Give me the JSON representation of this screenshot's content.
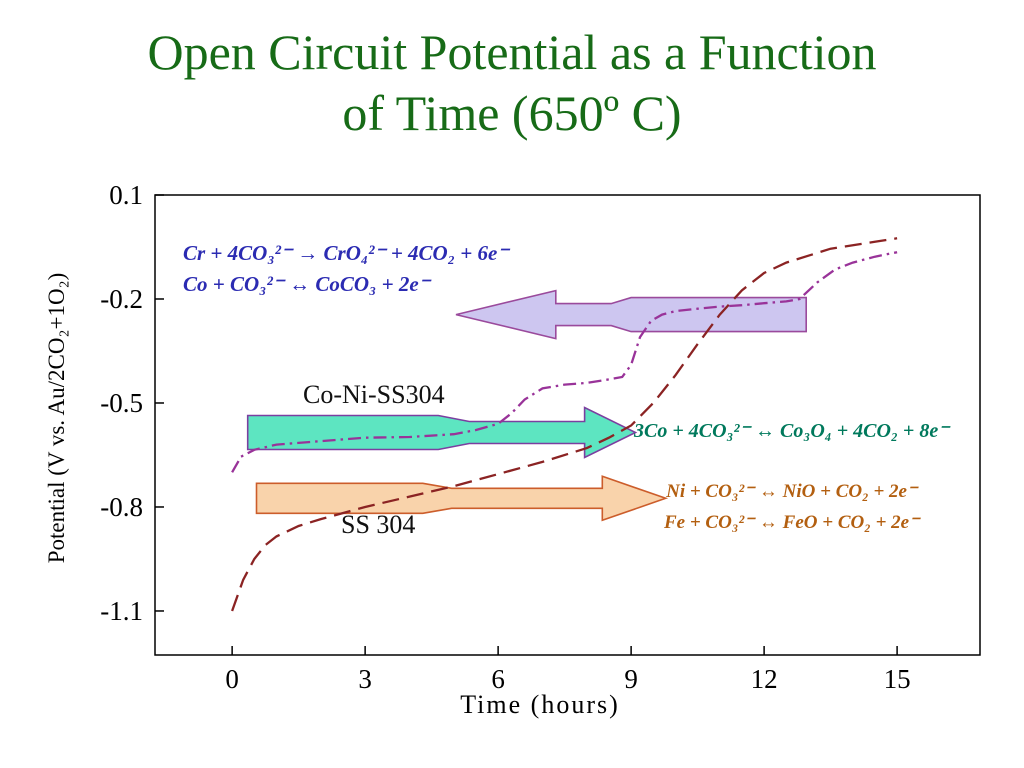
{
  "title": {
    "line1": "Open Circuit Potential as a Function",
    "line2": "of Time (650º C)",
    "color": "#176b17"
  },
  "chart_data": {
    "type": "line",
    "title": "Open Circuit Potential as a Function of Time (650º C)",
    "xlabel": "Time (hours)",
    "ylabel": "Potential (V vs. Au/2CO₂+1O₂)",
    "xlim": [
      -1.74,
      16.87
    ],
    "ylim": [
      -1.227,
      0.1
    ],
    "x_ticks": [
      0,
      3,
      6,
      9,
      12,
      15
    ],
    "y_ticks": [
      0.1,
      -0.2,
      -0.5,
      -0.8,
      -1.1
    ],
    "grid": false,
    "legend_position": "none",
    "series": [
      {
        "name": "SS 304",
        "color": "#8b2323",
        "line_style": "dashed",
        "x": [
          0,
          0.25,
          0.5,
          0.75,
          1,
          1.5,
          2,
          3,
          4,
          5,
          6,
          7,
          8,
          8.5,
          9,
          9.5,
          10,
          10.5,
          11,
          11.5,
          12,
          12.5,
          13,
          13.5,
          14,
          14.5,
          15
        ],
        "y": [
          -1.1,
          -1.01,
          -0.95,
          -0.91,
          -0.885,
          -0.855,
          -0.835,
          -0.8,
          -0.77,
          -0.74,
          -0.705,
          -0.67,
          -0.63,
          -0.6,
          -0.565,
          -0.5,
          -0.42,
          -0.33,
          -0.245,
          -0.175,
          -0.125,
          -0.095,
          -0.075,
          -0.055,
          -0.045,
          -0.035,
          -0.025
        ]
      },
      {
        "name": "Co-Ni-SS304",
        "color": "#993399",
        "line_style": "dashdot",
        "x": [
          0,
          0.2,
          0.5,
          1,
          1.5,
          2,
          3,
          4,
          5,
          5.5,
          6,
          6.3,
          6.6,
          7,
          7.5,
          8,
          8.5,
          8.8,
          9,
          9.2,
          9.45,
          9.7,
          10,
          10.5,
          11,
          11.5,
          12,
          12.5,
          12.8,
          13.2,
          13.6,
          14,
          14.5,
          15
        ],
        "y": [
          -0.7,
          -0.655,
          -0.635,
          -0.62,
          -0.615,
          -0.61,
          -0.6,
          -0.598,
          -0.59,
          -0.578,
          -0.56,
          -0.53,
          -0.49,
          -0.458,
          -0.447,
          -0.442,
          -0.432,
          -0.425,
          -0.39,
          -0.31,
          -0.263,
          -0.245,
          -0.235,
          -0.228,
          -0.222,
          -0.218,
          -0.212,
          -0.207,
          -0.2,
          -0.152,
          -0.115,
          -0.095,
          -0.078,
          -0.065
        ]
      }
    ],
    "arrows": [
      {
        "name": "cr-co-reaction-arrow",
        "direction": "left",
        "tail": 12.95,
        "taper_a": 9.0,
        "taper_b": 8.55,
        "head_base": 7.3,
        "tip": 5.05,
        "cy": -0.245,
        "body_h": 17,
        "shaft_h": 11,
        "head_h": 24,
        "fill": "#cdc6f0",
        "stroke": "#9a4a9c"
      },
      {
        "name": "co-ni-ss304-arrow",
        "direction": "right",
        "tail": 0.35,
        "taper_a": 4.65,
        "taper_b": 5.35,
        "head_base": 7.95,
        "tip": 9.1,
        "cy": -0.585,
        "body_h": 17,
        "shaft_h": 11,
        "head_h": 25,
        "fill": "#5de5c1",
        "stroke": "#7b3fa0"
      },
      {
        "name": "ss304-arrow",
        "direction": "right",
        "tail": 0.55,
        "taper_a": 4.3,
        "taper_b": 4.95,
        "head_base": 8.35,
        "tip": 9.78,
        "cy": -0.775,
        "body_h": 15,
        "shaft_h": 10,
        "head_h": 22,
        "fill": "#f9d3ab",
        "stroke": "#cc5d2b"
      }
    ],
    "annotations": {
      "reaction_cr": "Cr + 4CO₃²⁻ → CrO₄²⁻ + 4CO₂ + 6e⁻",
      "reaction_co": "Co + CO₃²⁻ ↔ CoCO₃ + 2e⁻",
      "reaction_3co": "3Co + 4CO₃²⁻ ↔ Co₃O₄ + 4CO₂ + 8e⁻",
      "reaction_ni": "Ni + CO₃²⁻ ↔ NiO + CO₂ + 2e⁻",
      "reaction_fe": "Fe + CO₃²⁻ ↔ FeO + CO₂ + 2e⁻",
      "label_coni": "Co-Ni-SS304",
      "label_ss": "SS 304"
    }
  }
}
